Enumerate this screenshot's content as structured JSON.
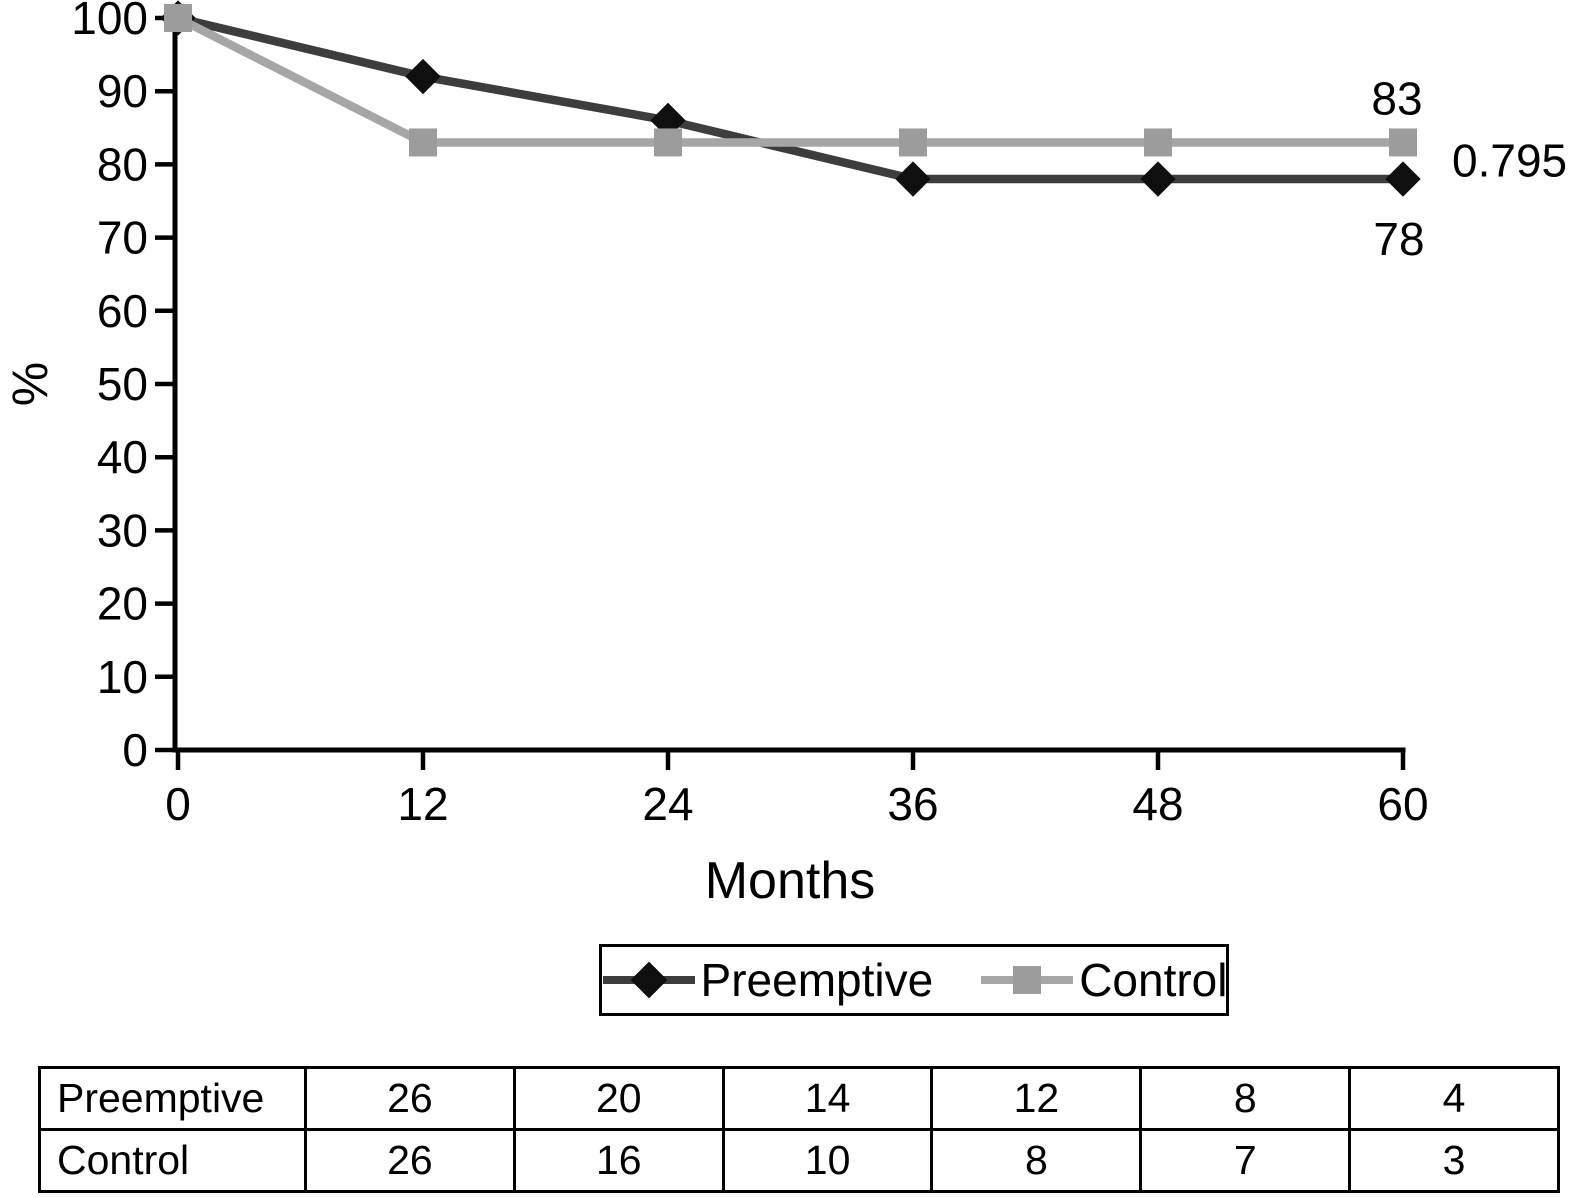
{
  "chart_data": {
    "type": "line",
    "x": [
      0,
      12,
      24,
      36,
      48,
      60
    ],
    "xlabel": "Months",
    "ylabel": "%",
    "xlim": [
      0,
      60
    ],
    "ylim": [
      0,
      100
    ],
    "yticks": [
      0,
      10,
      20,
      30,
      40,
      50,
      60,
      70,
      80,
      90,
      100
    ],
    "xticks": [
      0,
      12,
      24,
      36,
      48,
      60
    ],
    "grid": false,
    "series": [
      {
        "name": "Preemptive",
        "values": [
          100,
          92,
          86,
          78,
          78,
          78
        ],
        "marker": "diamond",
        "line_color": "#3d3d3d",
        "marker_color": "#0f0f0f"
      },
      {
        "name": "Control",
        "values": [
          100,
          83,
          83,
          83,
          83,
          83
        ],
        "marker": "square",
        "line_color": "#a6a6a6",
        "marker_color": "#9c9c9c"
      }
    ],
    "annotations": {
      "control_end": "83",
      "p_value": "0.795",
      "preemptive_end": "78"
    },
    "legend": {
      "position": "bottom",
      "entries": [
        "Preemptive",
        "Control"
      ]
    }
  },
  "risk_table": {
    "rows": [
      {
        "label": "Preemptive",
        "values": [
          "26",
          "20",
          "14",
          "12",
          "8",
          "4"
        ]
      },
      {
        "label": "Control",
        "values": [
          "26",
          "16",
          "10",
          "8",
          "7",
          "3"
        ]
      }
    ]
  }
}
